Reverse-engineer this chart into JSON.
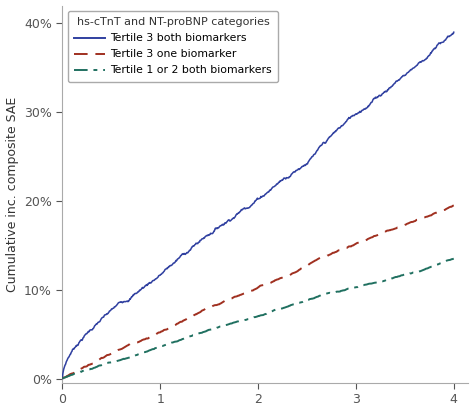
{
  "ylabel": "Cumulative inc. composite SAE",
  "xlabel": "",
  "xlim": [
    0,
    4.15
  ],
  "ylim": [
    -0.005,
    0.42
  ],
  "yticks": [
    0.0,
    0.1,
    0.2,
    0.3,
    0.4
  ],
  "ytick_labels": [
    "0%",
    "10%",
    "20%",
    "30%",
    "40%"
  ],
  "xticks": [
    0,
    1,
    2,
    3,
    4
  ],
  "xtick_labels": [
    "0",
    "1",
    "2",
    "3",
    "4"
  ],
  "legend_title": "hs-cTnT and NT-proBNP categories",
  "legend_entries": [
    "Tertile 3 both biomarkers",
    "Tertile 3 one biomarker",
    "Tertile 1 or 2 both biomarkers"
  ],
  "line1_color": "#3040a0",
  "line2_color": "#a03020",
  "line3_color": "#207060",
  "background_color": "#ffffff",
  "figure_bg": "#ffffff",
  "spine_color": "#aaaaaa",
  "tick_color": "#555555"
}
